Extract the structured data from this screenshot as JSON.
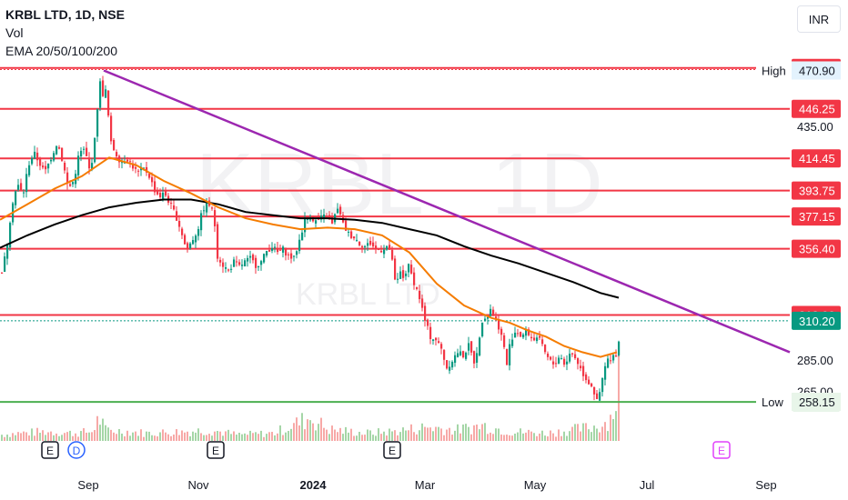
{
  "legend": {
    "symbol": "KRBL LTD, 1D, NSE",
    "vol": "Vol",
    "ema": "EMA 20/50/100/200"
  },
  "currency_button": "INR",
  "watermark": {
    "symbol": "KRBL",
    "interval": "1D",
    "name": "KRBL LTD"
  },
  "chart_data": {
    "type": "candlestick",
    "title": "KRBL LTD, 1D, NSE",
    "currency": "INR",
    "y_axis": {
      "range": [
        240,
        490
      ],
      "tick_labels": [
        "435.00",
        "285.00",
        "265.00"
      ],
      "scale": "linear"
    },
    "x_axis": {
      "tick_labels": [
        "Sep",
        "Nov",
        "2024",
        "Mar",
        "May",
        "Jul",
        "Sep"
      ],
      "bold_labels": [
        "2024"
      ]
    },
    "grid": false,
    "horizontal_levels": [
      {
        "value": 472.5,
        "label": "472.50",
        "color": "#f23645"
      },
      {
        "value": 446.25,
        "label": "446.25",
        "color": "#f23645"
      },
      {
        "value": 414.45,
        "label": "414.45",
        "color": "#f23645"
      },
      {
        "value": 393.75,
        "label": "393.75",
        "color": "#f23645"
      },
      {
        "value": 377.15,
        "label": "377.15",
        "color": "#f23645"
      },
      {
        "value": 356.4,
        "label": "356.40",
        "color": "#f23645"
      },
      {
        "value": 313.9,
        "label": "313.90",
        "color": "#f23645"
      },
      {
        "value": 258.05,
        "label": "258.05",
        "color": "#4caf50"
      }
    ],
    "high": {
      "label": "High",
      "value": "470.90",
      "price": 470.9
    },
    "low": {
      "label": "Low",
      "value": "258.15",
      "price": 258.15
    },
    "last_price": {
      "value": 310.2,
      "label": "310.20",
      "color": "#089981"
    },
    "trendline": {
      "from": {
        "date": "Sep 2023",
        "price": 470.9
      },
      "to": {
        "date": "Sep 2024",
        "price": 290
      },
      "color": "#9c27b0"
    },
    "ema_lines": [
      {
        "name": "EMA 50",
        "color": "#f57c00"
      },
      {
        "name": "EMA 200",
        "color": "#000000"
      }
    ],
    "events": [
      "E",
      "D",
      "E",
      "E",
      "E"
    ],
    "price_path": [
      [
        0,
        340
      ],
      [
        6,
        355
      ],
      [
        12,
        385
      ],
      [
        18,
        398
      ],
      [
        24,
        390
      ],
      [
        30,
        410
      ],
      [
        36,
        418
      ],
      [
        42,
        412
      ],
      [
        48,
        405
      ],
      [
        55,
        415
      ],
      [
        62,
        425
      ],
      [
        68,
        412
      ],
      [
        74,
        395
      ],
      [
        80,
        400
      ],
      [
        86,
        418
      ],
      [
        92,
        420
      ],
      [
        98,
        405
      ],
      [
        104,
        430
      ],
      [
        108,
        465
      ],
      [
        112,
        456
      ],
      [
        116,
        458
      ],
      [
        120,
        425
      ],
      [
        126,
        418
      ],
      [
        132,
        412
      ],
      [
        138,
        415
      ],
      [
        144,
        410
      ],
      [
        150,
        405
      ],
      [
        156,
        408
      ],
      [
        162,
        405
      ],
      [
        168,
        395
      ],
      [
        174,
        390
      ],
      [
        180,
        392
      ],
      [
        186,
        385
      ],
      [
        192,
        378
      ],
      [
        198,
        368
      ],
      [
        204,
        355
      ],
      [
        210,
        362
      ],
      [
        216,
        368
      ],
      [
        222,
        382
      ],
      [
        228,
        386
      ],
      [
        234,
        378
      ],
      [
        238,
        352
      ],
      [
        244,
        346
      ],
      [
        250,
        342
      ],
      [
        256,
        348
      ],
      [
        262,
        345
      ],
      [
        268,
        348
      ],
      [
        274,
        350
      ],
      [
        280,
        346
      ],
      [
        286,
        348
      ],
      [
        292,
        355
      ],
      [
        298,
        358
      ],
      [
        304,
        354
      ],
      [
        310,
        356
      ],
      [
        316,
        352
      ],
      [
        322,
        350
      ],
      [
        328,
        362
      ],
      [
        334,
        375
      ],
      [
        340,
        377
      ],
      [
        346,
        374
      ],
      [
        352,
        376
      ],
      [
        358,
        378
      ],
      [
        364,
        372
      ],
      [
        370,
        383
      ],
      [
        376,
        372
      ],
      [
        382,
        366
      ],
      [
        388,
        364
      ],
      [
        394,
        360
      ],
      [
        400,
        358
      ],
      [
        406,
        360
      ],
      [
        412,
        356
      ],
      [
        418,
        356
      ],
      [
        424,
        358
      ],
      [
        430,
        350
      ],
      [
        434,
        330
      ],
      [
        438,
        342
      ],
      [
        442,
        338
      ],
      [
        448,
        345
      ],
      [
        454,
        335
      ],
      [
        460,
        325
      ],
      [
        466,
        310
      ],
      [
        472,
        300
      ],
      [
        478,
        298
      ],
      [
        484,
        292
      ],
      [
        490,
        280
      ],
      [
        496,
        285
      ],
      [
        502,
        290
      ],
      [
        508,
        288
      ],
      [
        514,
        294
      ],
      [
        520,
        284
      ],
      [
        526,
        298
      ],
      [
        530,
        315
      ],
      [
        534,
        312
      ],
      [
        538,
        318
      ],
      [
        542,
        314
      ],
      [
        548,
        305
      ],
      [
        552,
        296
      ],
      [
        556,
        282
      ],
      [
        560,
        298
      ],
      [
        566,
        304
      ],
      [
        572,
        300
      ],
      [
        578,
        304
      ],
      [
        584,
        298
      ],
      [
        590,
        300
      ],
      [
        596,
        292
      ],
      [
        602,
        285
      ],
      [
        608,
        282
      ],
      [
        614,
        288
      ],
      [
        620,
        282
      ],
      [
        626,
        290
      ],
      [
        632,
        286
      ],
      [
        638,
        278
      ],
      [
        644,
        272
      ],
      [
        650,
        268
      ],
      [
        655,
        258
      ],
      [
        658,
        264
      ],
      [
        662,
        275
      ],
      [
        666,
        286
      ],
      [
        670,
        284
      ],
      [
        674,
        288
      ],
      [
        678,
        290
      ],
      [
        681,
        310
      ]
    ],
    "ema50_path": [
      [
        0,
        375
      ],
      [
        30,
        385
      ],
      [
        60,
        395
      ],
      [
        90,
        403
      ],
      [
        120,
        415
      ],
      [
        150,
        410
      ],
      [
        180,
        400
      ],
      [
        210,
        392
      ],
      [
        240,
        383
      ],
      [
        270,
        376
      ],
      [
        300,
        372
      ],
      [
        330,
        369
      ],
      [
        360,
        370
      ],
      [
        390,
        369
      ],
      [
        420,
        365
      ],
      [
        450,
        354
      ],
      [
        480,
        334
      ],
      [
        510,
        320
      ],
      [
        540,
        312
      ],
      [
        560,
        309
      ],
      [
        580,
        304
      ],
      [
        600,
        300
      ],
      [
        620,
        294
      ],
      [
        640,
        290
      ],
      [
        660,
        287
      ],
      [
        678,
        290
      ]
    ],
    "ema200_path": [
      [
        0,
        357
      ],
      [
        30,
        365
      ],
      [
        60,
        372
      ],
      [
        90,
        378
      ],
      [
        120,
        383
      ],
      [
        150,
        386
      ],
      [
        180,
        388
      ],
      [
        210,
        388
      ],
      [
        240,
        385
      ],
      [
        270,
        380
      ],
      [
        300,
        378
      ],
      [
        330,
        376
      ],
      [
        360,
        376
      ],
      [
        390,
        375
      ],
      [
        420,
        373
      ],
      [
        450,
        369
      ],
      [
        480,
        365
      ],
      [
        510,
        358
      ],
      [
        540,
        352
      ],
      [
        570,
        347
      ],
      [
        600,
        341
      ],
      [
        630,
        335
      ],
      [
        660,
        328
      ],
      [
        680,
        325
      ]
    ],
    "volume_path": [
      [
        0,
        8
      ],
      [
        20,
        10
      ],
      [
        50,
        12
      ],
      [
        80,
        10
      ],
      [
        100,
        12
      ],
      [
        108,
        30
      ],
      [
        115,
        14
      ],
      [
        140,
        12
      ],
      [
        160,
        10
      ],
      [
        200,
        12
      ],
      [
        230,
        14
      ],
      [
        260,
        8
      ],
      [
        300,
        10
      ],
      [
        340,
        30
      ],
      [
        360,
        15
      ],
      [
        400,
        10
      ],
      [
        430,
        12
      ],
      [
        470,
        18
      ],
      [
        500,
        14
      ],
      [
        530,
        20
      ],
      [
        560,
        12
      ],
      [
        600,
        10
      ],
      [
        640,
        16
      ],
      [
        660,
        20
      ],
      [
        670,
        30
      ],
      [
        675,
        45
      ],
      [
        681,
        95
      ]
    ]
  }
}
